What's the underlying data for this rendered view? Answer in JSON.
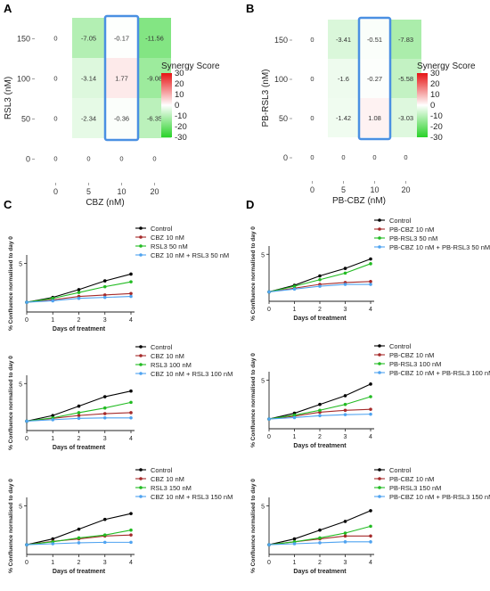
{
  "panels": {
    "A": "A",
    "B": "B",
    "C": "C",
    "D": "D"
  },
  "chart_data": [
    {
      "type": "heatmap",
      "id": "A",
      "ylabel": "RSL3 (nM)",
      "xlabel": "CBZ (nM)",
      "x": [
        "0",
        "5",
        "10",
        "20"
      ],
      "y": [
        "150",
        "100",
        "50",
        "0"
      ],
      "values": [
        [
          0,
          -7.05,
          -0.17,
          -11.56
        ],
        [
          0,
          -3.14,
          1.77,
          -9.08
        ],
        [
          0,
          -2.34,
          -0.36,
          -6.35
        ],
        [
          0,
          0,
          0,
          0
        ]
      ],
      "highlight_column": "10",
      "legend_title": "Synergy Score",
      "legend_ticks": [
        30,
        20,
        10,
        0,
        -10,
        -20,
        -30
      ]
    },
    {
      "type": "heatmap",
      "id": "B",
      "ylabel": "PB-RSL3 (nM)",
      "xlabel": "PB-CBZ (nM)",
      "x": [
        "0",
        "5",
        "10",
        "20"
      ],
      "y": [
        "150",
        "100",
        "50",
        "0"
      ],
      "values": [
        [
          0,
          -3.41,
          -0.51,
          -7.83
        ],
        [
          0,
          -1.6,
          -0.27,
          -5.58
        ],
        [
          0,
          -1.42,
          1.08,
          -3.03
        ],
        [
          0,
          0,
          0,
          0
        ]
      ],
      "highlight_column": "10",
      "legend_title": "Synergy Score",
      "legend_ticks": [
        30,
        20,
        10,
        0,
        -10,
        -20,
        -30
      ]
    },
    {
      "type": "line",
      "id": "C1",
      "xlabel": "Days of treatment",
      "ylabel": "% Confluence normalised to day 0",
      "x": [
        0,
        1,
        2,
        3,
        4
      ],
      "xticks": [
        "0",
        "1",
        "2",
        "3",
        "4"
      ],
      "yticks": [
        "5"
      ],
      "ylim": [
        0,
        5.5
      ],
      "series": [
        {
          "name": "Control",
          "color": "#000000",
          "values": [
            1,
            1.5,
            2.3,
            3.2,
            3.9
          ]
        },
        {
          "name": "CBZ 10 nM",
          "color": "#a52a2a",
          "values": [
            1,
            1.25,
            1.6,
            1.75,
            1.9
          ]
        },
        {
          "name": "RSL3 50 nM",
          "color": "#22bb22",
          "values": [
            1,
            1.4,
            2.0,
            2.6,
            3.1
          ]
        },
        {
          "name": "CBZ 10 nM + RSL3 50 nM",
          "color": "#4fa3f0",
          "values": [
            1,
            1.15,
            1.4,
            1.5,
            1.6
          ]
        }
      ]
    },
    {
      "type": "line",
      "id": "C2",
      "xlabel": "Days of treatment",
      "ylabel": "% Confluence normalised to day 0",
      "x": [
        0,
        1,
        2,
        3,
        4
      ],
      "xticks": [
        "0",
        "1",
        "2",
        "3",
        "4"
      ],
      "yticks": [
        "5"
      ],
      "ylim": [
        0,
        5.5
      ],
      "series": [
        {
          "name": "Control",
          "color": "#000000",
          "values": [
            1,
            1.6,
            2.6,
            3.6,
            4.2
          ]
        },
        {
          "name": "CBZ 10 nM",
          "color": "#a52a2a",
          "values": [
            1,
            1.3,
            1.6,
            1.8,
            1.9
          ]
        },
        {
          "name": "RSL3 100 nM",
          "color": "#22bb22",
          "values": [
            1,
            1.35,
            1.9,
            2.4,
            3.0
          ]
        },
        {
          "name": "CBZ 10 nM + RSL3 100 nM",
          "color": "#4fa3f0",
          "values": [
            1,
            1.15,
            1.3,
            1.35,
            1.35
          ]
        }
      ]
    },
    {
      "type": "line",
      "id": "C3",
      "xlabel": "Days of treatment",
      "ylabel": "% Confluence normalised to day 0",
      "x": [
        0,
        1,
        2,
        3,
        4
      ],
      "xticks": [
        "0",
        "1",
        "2",
        "3",
        "4"
      ],
      "yticks": [
        "5"
      ],
      "ylim": [
        0,
        5.5
      ],
      "series": [
        {
          "name": "Control",
          "color": "#000000",
          "values": [
            1,
            1.6,
            2.6,
            3.6,
            4.2
          ]
        },
        {
          "name": "CBZ 10 nM",
          "color": "#a52a2a",
          "values": [
            1,
            1.35,
            1.6,
            1.9,
            2.0
          ]
        },
        {
          "name": "RSL3 150 nM",
          "color": "#22bb22",
          "values": [
            1,
            1.3,
            1.7,
            2.0,
            2.5
          ]
        },
        {
          "name": "CBZ 10 nM + RSL3 150 nM",
          "color": "#4fa3f0",
          "values": [
            1,
            1.1,
            1.2,
            1.25,
            1.25
          ]
        }
      ]
    },
    {
      "type": "line",
      "id": "D1",
      "xlabel": "Days of treatment",
      "ylabel": "% Confluence normalised to day 0",
      "x": [
        0,
        1,
        2,
        3,
        4
      ],
      "xticks": [
        "0",
        "1",
        "2",
        "3",
        "4"
      ],
      "yticks": [
        "5"
      ],
      "ylim": [
        0,
        5.5
      ],
      "series": [
        {
          "name": "Control",
          "color": "#000000",
          "values": [
            1,
            1.7,
            2.7,
            3.5,
            4.5
          ]
        },
        {
          "name": "PB-CBZ 10 nM",
          "color": "#a52a2a",
          "values": [
            1,
            1.4,
            1.8,
            2.0,
            2.1
          ]
        },
        {
          "name": "PB-RSL3 50 nM",
          "color": "#22bb22",
          "values": [
            1,
            1.6,
            2.3,
            3.0,
            4.0
          ]
        },
        {
          "name": "PB-CBZ 10 nM + PB-RSL3 50 nM",
          "color": "#4fa3f0",
          "values": [
            1,
            1.3,
            1.6,
            1.8,
            1.8
          ]
        }
      ]
    },
    {
      "type": "line",
      "id": "D2",
      "xlabel": "Days of treatment",
      "ylabel": "% Confluence normalised to day 0",
      "x": [
        0,
        1,
        2,
        3,
        4
      ],
      "xticks": [
        "0",
        "1",
        "2",
        "3",
        "4"
      ],
      "yticks": [
        "5"
      ],
      "ylim": [
        0,
        5.5
      ],
      "series": [
        {
          "name": "Control",
          "color": "#000000",
          "values": [
            1,
            1.6,
            2.5,
            3.4,
            4.6
          ]
        },
        {
          "name": "PB-CBZ 10 nM",
          "color": "#a52a2a",
          "values": [
            1,
            1.3,
            1.7,
            1.9,
            2.0
          ]
        },
        {
          "name": "PB-RSL3 100 nM",
          "color": "#22bb22",
          "values": [
            1,
            1.4,
            1.9,
            2.5,
            3.3
          ]
        },
        {
          "name": "PB-CBZ 10 nM + PB-RSL3 100 nM",
          "color": "#4fa3f0",
          "values": [
            1,
            1.15,
            1.35,
            1.45,
            1.5
          ]
        }
      ]
    },
    {
      "type": "line",
      "id": "D3",
      "xlabel": "Days of treatment",
      "ylabel": "% Confluence normalised to day 0",
      "x": [
        0,
        1,
        2,
        3,
        4
      ],
      "xticks": [
        "0",
        "1",
        "2",
        "3",
        "4"
      ],
      "yticks": [
        "5"
      ],
      "ylim": [
        0,
        5.5
      ],
      "series": [
        {
          "name": "Control",
          "color": "#000000",
          "values": [
            1,
            1.6,
            2.5,
            3.4,
            4.5
          ]
        },
        {
          "name": "PB-CBZ 10 nM",
          "color": "#a52a2a",
          "values": [
            1,
            1.3,
            1.6,
            1.9,
            1.9
          ]
        },
        {
          "name": "PB-RSL3 150 nM",
          "color": "#22bb22",
          "values": [
            1,
            1.3,
            1.7,
            2.2,
            2.9
          ]
        },
        {
          "name": "PB-CBZ 10 nM + PB-RSL3 150 nM",
          "color": "#4fa3f0",
          "values": [
            1,
            1.1,
            1.2,
            1.3,
            1.3
          ]
        }
      ]
    }
  ]
}
